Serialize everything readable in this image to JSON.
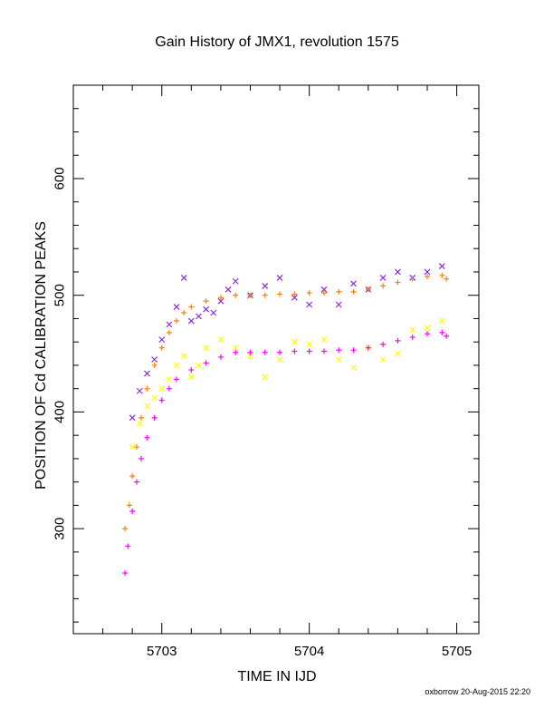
{
  "chart_data": {
    "type": "scatter",
    "title": "Gain History of JMX1, revolution 1575",
    "xlabel": "TIME IN IJD",
    "ylabel": "POSITION OF Cd CALIBRATION PEAKS",
    "xlim": [
      5702.4,
      5705.15
    ],
    "ylim": [
      210,
      680
    ],
    "xticks": [
      5703,
      5704,
      5705
    ],
    "yticks": [
      300,
      400,
      500,
      600
    ],
    "grid": false,
    "footer": "oxborrow 20-Aug-2015 22:20",
    "series": [
      {
        "marker": "x",
        "color": "#8a2be2",
        "values": [
          [
            5702.8,
            395
          ],
          [
            5702.85,
            418
          ],
          [
            5702.9,
            433
          ],
          [
            5702.95,
            445
          ],
          [
            5703.0,
            462
          ],
          [
            5703.05,
            475
          ],
          [
            5703.1,
            490
          ],
          [
            5703.15,
            515
          ],
          [
            5703.2,
            478
          ],
          [
            5703.25,
            482
          ],
          [
            5703.3,
            488
          ],
          [
            5703.35,
            485
          ],
          [
            5703.4,
            495
          ],
          [
            5703.45,
            505
          ],
          [
            5703.5,
            512
          ],
          [
            5703.6,
            500
          ],
          [
            5703.7,
            508
          ],
          [
            5703.8,
            515
          ],
          [
            5703.9,
            498
          ],
          [
            5704.0,
            492
          ],
          [
            5704.1,
            505
          ],
          [
            5704.2,
            492
          ],
          [
            5704.3,
            510
          ],
          [
            5704.4,
            505
          ],
          [
            5704.5,
            515
          ],
          [
            5704.6,
            520
          ],
          [
            5704.7,
            515
          ],
          [
            5704.8,
            520
          ],
          [
            5704.9,
            525
          ]
        ]
      },
      {
        "marker": "x",
        "color": "#ffff00",
        "values": [
          [
            5702.8,
            370
          ],
          [
            5702.85,
            390
          ],
          [
            5702.9,
            405
          ],
          [
            5702.95,
            412
          ],
          [
            5703.0,
            420
          ],
          [
            5703.05,
            428
          ],
          [
            5703.1,
            440
          ],
          [
            5703.15,
            448
          ],
          [
            5703.2,
            430
          ],
          [
            5703.25,
            440
          ],
          [
            5703.3,
            455
          ],
          [
            5703.4,
            462
          ],
          [
            5703.5,
            455
          ],
          [
            5703.6,
            448
          ],
          [
            5703.7,
            430
          ],
          [
            5703.8,
            445
          ],
          [
            5703.9,
            460
          ],
          [
            5704.0,
            458
          ],
          [
            5704.1,
            462
          ],
          [
            5704.2,
            445
          ],
          [
            5704.3,
            438
          ],
          [
            5704.4,
            455
          ],
          [
            5704.5,
            445
          ],
          [
            5704.6,
            450
          ],
          [
            5704.7,
            470
          ],
          [
            5704.8,
            472
          ],
          [
            5704.9,
            478
          ]
        ]
      },
      {
        "marker": "+",
        "color": "#ff8000",
        "values": [
          [
            5702.75,
            300
          ],
          [
            5702.78,
            320
          ],
          [
            5702.8,
            345
          ],
          [
            5702.83,
            370
          ],
          [
            5702.86,
            395
          ],
          [
            5702.9,
            420
          ],
          [
            5702.95,
            440
          ],
          [
            5703.0,
            455
          ],
          [
            5703.05,
            468
          ],
          [
            5703.1,
            478
          ],
          [
            5703.15,
            485
          ],
          [
            5703.2,
            490
          ],
          [
            5703.3,
            495
          ],
          [
            5703.4,
            498
          ],
          [
            5703.5,
            500
          ],
          [
            5703.6,
            500
          ],
          [
            5703.7,
            500
          ],
          [
            5703.8,
            501
          ],
          [
            5703.9,
            501
          ],
          [
            5704.0,
            502
          ],
          [
            5704.1,
            502
          ],
          [
            5704.2,
            503
          ],
          [
            5704.3,
            503
          ],
          [
            5704.4,
            505
          ],
          [
            5704.5,
            508
          ],
          [
            5704.6,
            511
          ],
          [
            5704.7,
            514
          ],
          [
            5704.8,
            516
          ],
          [
            5704.9,
            517
          ],
          [
            5704.93,
            514
          ]
        ]
      },
      {
        "marker": "+",
        "color": "#ff00ff",
        "values": [
          [
            5702.75,
            262
          ],
          [
            5702.77,
            285
          ],
          [
            5702.8,
            315
          ],
          [
            5702.83,
            340
          ],
          [
            5702.86,
            360
          ],
          [
            5702.9,
            378
          ],
          [
            5702.95,
            395
          ],
          [
            5703.0,
            410
          ],
          [
            5703.05,
            420
          ],
          [
            5703.1,
            428
          ],
          [
            5703.2,
            436
          ],
          [
            5703.3,
            442
          ],
          [
            5703.4,
            447
          ],
          [
            5703.5,
            451
          ],
          [
            5703.6,
            451
          ],
          [
            5703.7,
            451
          ],
          [
            5703.8,
            451
          ],
          [
            5703.9,
            452
          ],
          [
            5704.0,
            452
          ],
          [
            5704.1,
            452
          ],
          [
            5704.2,
            453
          ],
          [
            5704.3,
            453
          ],
          [
            5704.4,
            455
          ],
          [
            5704.5,
            458
          ],
          [
            5704.6,
            461
          ],
          [
            5704.7,
            464
          ],
          [
            5704.8,
            467
          ],
          [
            5704.9,
            468
          ],
          [
            5704.93,
            465
          ]
        ]
      }
    ]
  }
}
